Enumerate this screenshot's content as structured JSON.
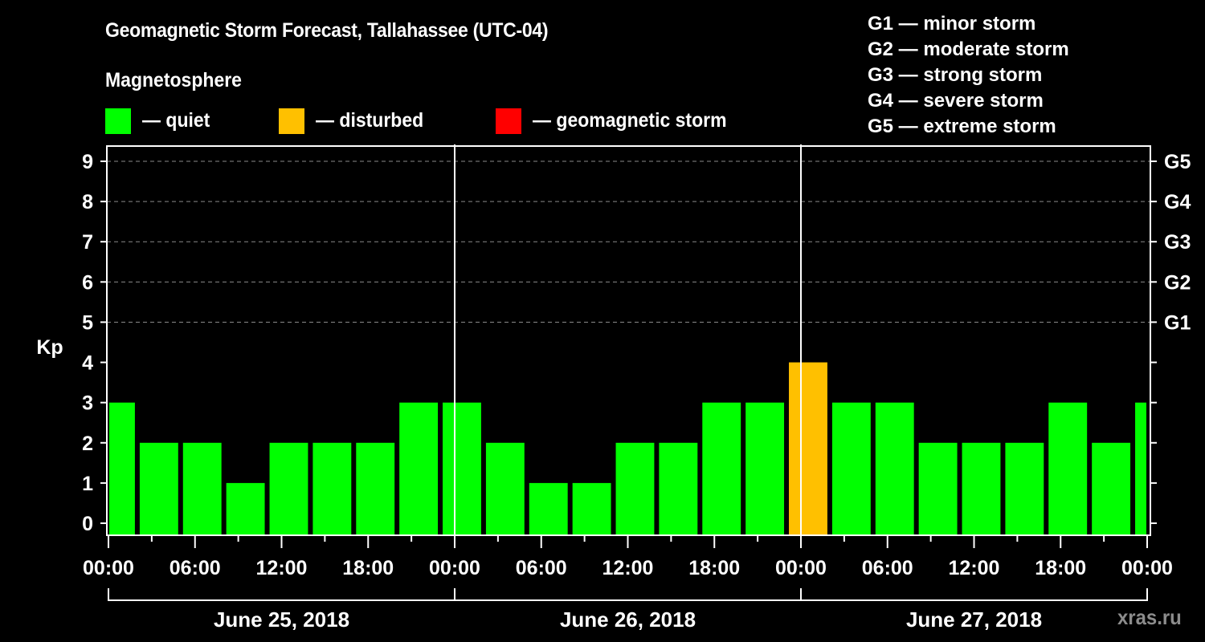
{
  "chart_data": {
    "type": "bar",
    "title": "Geomagnetic Storm Forecast, Tallahassee (UTC-04)",
    "subtitle": "Magnetosphere",
    "ylabel": "Kp",
    "ylim": [
      0,
      9
    ],
    "yticks": [
      "0",
      "1",
      "2",
      "3",
      "4",
      "5",
      "6",
      "7",
      "8",
      "9"
    ],
    "right_ticks": [
      {
        "kp": 5,
        "label": "G1"
      },
      {
        "kp": 6,
        "label": "G2"
      },
      {
        "kp": 7,
        "label": "G3"
      },
      {
        "kp": 8,
        "label": "G4"
      },
      {
        "kp": 9,
        "label": "G5"
      }
    ],
    "grid": "dashed horizontal at Kp 5-9",
    "x_range_hours": [
      0,
      72
    ],
    "xticks": [
      {
        "hour": 0,
        "label": "00:00"
      },
      {
        "hour": 6,
        "label": "06:00"
      },
      {
        "hour": 12,
        "label": "12:00"
      },
      {
        "hour": 18,
        "label": "18:00"
      },
      {
        "hour": 24,
        "label": "00:00"
      },
      {
        "hour": 30,
        "label": "06:00"
      },
      {
        "hour": 36,
        "label": "12:00"
      },
      {
        "hour": 42,
        "label": "18:00"
      },
      {
        "hour": 48,
        "label": "00:00"
      },
      {
        "hour": 54,
        "label": "06:00"
      },
      {
        "hour": 60,
        "label": "12:00"
      },
      {
        "hour": 66,
        "label": "18:00"
      },
      {
        "hour": 72,
        "label": "00:00"
      }
    ],
    "days": [
      {
        "label": "June 25, 2018",
        "start_hour": 0,
        "end_hour": 24
      },
      {
        "label": "June 26, 2018",
        "start_hour": 24,
        "end_hour": 48
      },
      {
        "label": "June 27, 2018",
        "start_hour": 48,
        "end_hour": 72
      }
    ],
    "bars": [
      {
        "start": 0,
        "end": 2,
        "kp": 3,
        "status": "quiet"
      },
      {
        "start": 2,
        "end": 5,
        "kp": 2,
        "status": "quiet"
      },
      {
        "start": 5,
        "end": 8,
        "kp": 2,
        "status": "quiet"
      },
      {
        "start": 8,
        "end": 11,
        "kp": 1,
        "status": "quiet"
      },
      {
        "start": 11,
        "end": 14,
        "kp": 2,
        "status": "quiet"
      },
      {
        "start": 14,
        "end": 17,
        "kp": 2,
        "status": "quiet"
      },
      {
        "start": 17,
        "end": 20,
        "kp": 2,
        "status": "quiet"
      },
      {
        "start": 20,
        "end": 23,
        "kp": 3,
        "status": "quiet"
      },
      {
        "start": 23,
        "end": 26,
        "kp": 3,
        "status": "quiet"
      },
      {
        "start": 26,
        "end": 29,
        "kp": 2,
        "status": "quiet"
      },
      {
        "start": 29,
        "end": 32,
        "kp": 1,
        "status": "quiet"
      },
      {
        "start": 32,
        "end": 35,
        "kp": 1,
        "status": "quiet"
      },
      {
        "start": 35,
        "end": 38,
        "kp": 2,
        "status": "quiet"
      },
      {
        "start": 38,
        "end": 41,
        "kp": 2,
        "status": "quiet"
      },
      {
        "start": 41,
        "end": 44,
        "kp": 3,
        "status": "quiet"
      },
      {
        "start": 44,
        "end": 47,
        "kp": 3,
        "status": "quiet"
      },
      {
        "start": 47,
        "end": 50,
        "kp": 4,
        "status": "disturbed"
      },
      {
        "start": 50,
        "end": 53,
        "kp": 3,
        "status": "quiet"
      },
      {
        "start": 53,
        "end": 56,
        "kp": 3,
        "status": "quiet"
      },
      {
        "start": 56,
        "end": 59,
        "kp": 2,
        "status": "quiet"
      },
      {
        "start": 59,
        "end": 62,
        "kp": 2,
        "status": "quiet"
      },
      {
        "start": 62,
        "end": 65,
        "kp": 2,
        "status": "quiet"
      },
      {
        "start": 65,
        "end": 68,
        "kp": 3,
        "status": "quiet"
      },
      {
        "start": 68,
        "end": 71,
        "kp": 2,
        "status": "quiet"
      },
      {
        "start": 71,
        "end": 72,
        "kp": 3,
        "status": "quiet"
      }
    ],
    "legend": [
      {
        "status": "quiet",
        "label": "— quiet",
        "color": "#00ff00"
      },
      {
        "status": "disturbed",
        "label": "— disturbed",
        "color": "#ffc000"
      },
      {
        "status": "storm",
        "label": "— geomagnetic storm",
        "color": "#ff0000"
      }
    ],
    "storm_scale": [
      "G1 — minor storm",
      "G2 — moderate storm",
      "G3 — strong storm",
      "G4 — severe storm",
      "G5 — extreme storm"
    ]
  },
  "watermark": "xras.ru"
}
